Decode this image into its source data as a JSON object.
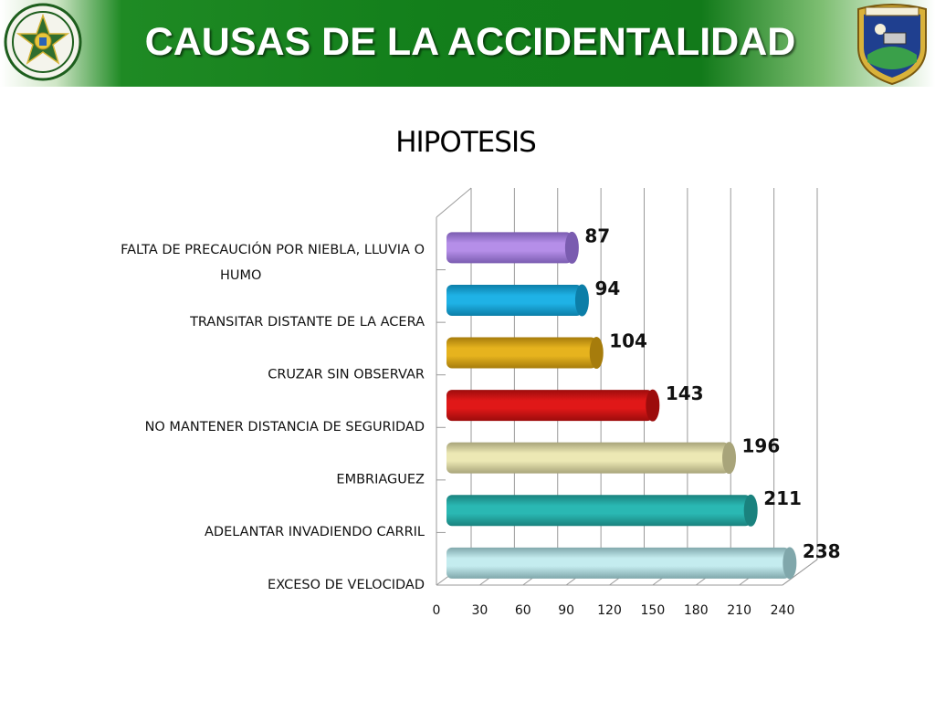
{
  "header": {
    "title": "CAUSAS DE LA ACCIDENTALIDAD",
    "logo_left_icon": "police-seal-icon",
    "logo_right_icon": "transit-police-shield-icon"
  },
  "colors": {
    "banner_green": "#137f1b",
    "title_text": "#ffffff"
  },
  "chart_data": {
    "type": "bar",
    "orientation": "horizontal",
    "title": "HIPOTESIS",
    "categories": [
      "FALTA DE PRECAUCIÓN POR NIEBLA, LLUVIA O HUMO",
      "TRANSITAR DISTANTE DE LA ACERA",
      "CRUZAR SIN OBSERVAR",
      "NO MANTENER DISTANCIA DE SEGURIDAD",
      "EMBRIAGUEZ",
      "ADELANTAR INVADIENDO CARRIL",
      "EXCESO DE VELOCIDAD"
    ],
    "category_lines": [
      [
        "FALTA DE PRECAUCIÓN POR NIEBLA, LLUVIA O",
        "HUMO"
      ],
      [
        "TRANSITAR DISTANTE DE LA ACERA"
      ],
      [
        "CRUZAR SIN OBSERVAR"
      ],
      [
        "NO MANTENER DISTANCIA DE SEGURIDAD"
      ],
      [
        "EMBRIAGUEZ"
      ],
      [
        "ADELANTAR INVADIENDO CARRIL"
      ],
      [
        "EXCESO DE VELOCIDAD"
      ]
    ],
    "values": [
      87,
      94,
      104,
      143,
      196,
      211,
      238
    ],
    "bar_colors": [
      "#b58ee8",
      "#1fb2e6",
      "#e6b31e",
      "#e01818",
      "#ece8b4",
      "#2ab8b3",
      "#c4ecef"
    ],
    "bar_dark_colors": [
      "#7a5cb0",
      "#0c7ea8",
      "#a67c0c",
      "#9c0c0c",
      "#a8a47a",
      "#1a827e",
      "#80a7ab"
    ],
    "xlim": [
      0,
      240
    ],
    "xticks": [
      0,
      30,
      60,
      90,
      120,
      150,
      180,
      210,
      240
    ],
    "grid": true,
    "style": "3d-cylinder",
    "legend": "none"
  }
}
